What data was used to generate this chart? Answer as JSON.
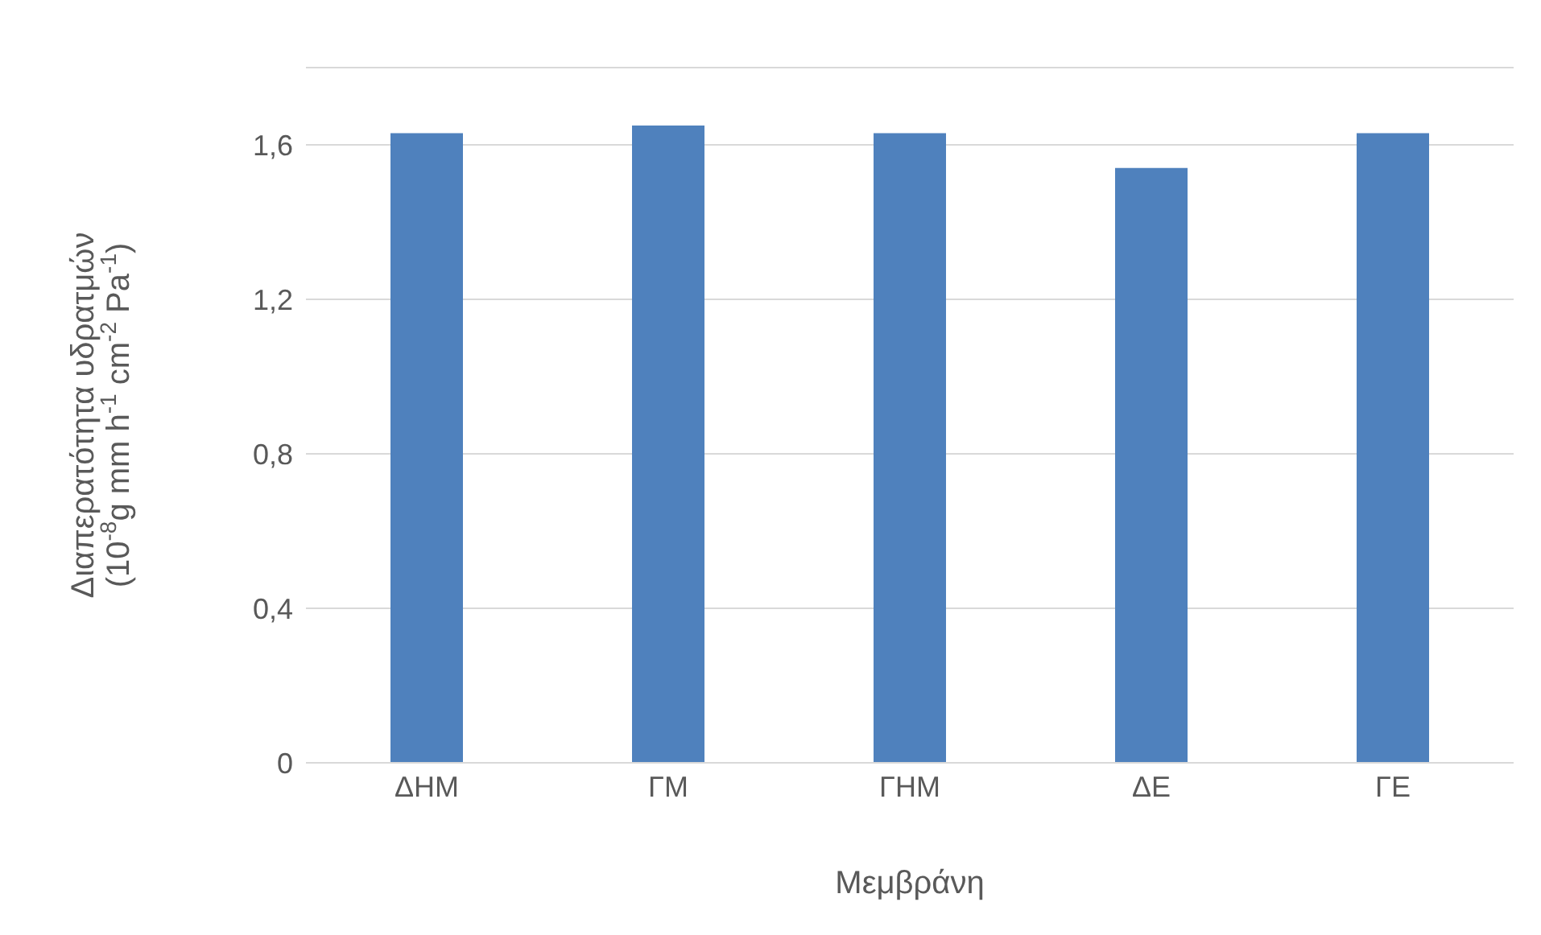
{
  "chart_data": {
    "type": "bar",
    "xlabel": "Μεμβράνη",
    "ylabel": "Διαπερατότητα υδρατμών\n(10$^{-8}$g mm h$^{-1}$ cm$^{-2}$ Pa$^{-1}$)",
    "categories": [
      "ΔΗΜ",
      "ΓΜ",
      "ΓΗΜ",
      "ΔΕ",
      "ΓΕ"
    ],
    "values": [
      1.63,
      1.65,
      1.63,
      1.54,
      1.63
    ],
    "color": "#4f81bd",
    "ylim": [
      0,
      1.8
    ],
    "yticks": [
      0,
      {
        "value": 0.4,
        "label": "0,4"
      },
      {
        "value": 0.8,
        "label": "0,8"
      },
      {
        "value": 1.2,
        "label": "1,2"
      },
      {
        "value": 1.6,
        "label": "1,6"
      }
    ],
    "grid": "y"
  }
}
